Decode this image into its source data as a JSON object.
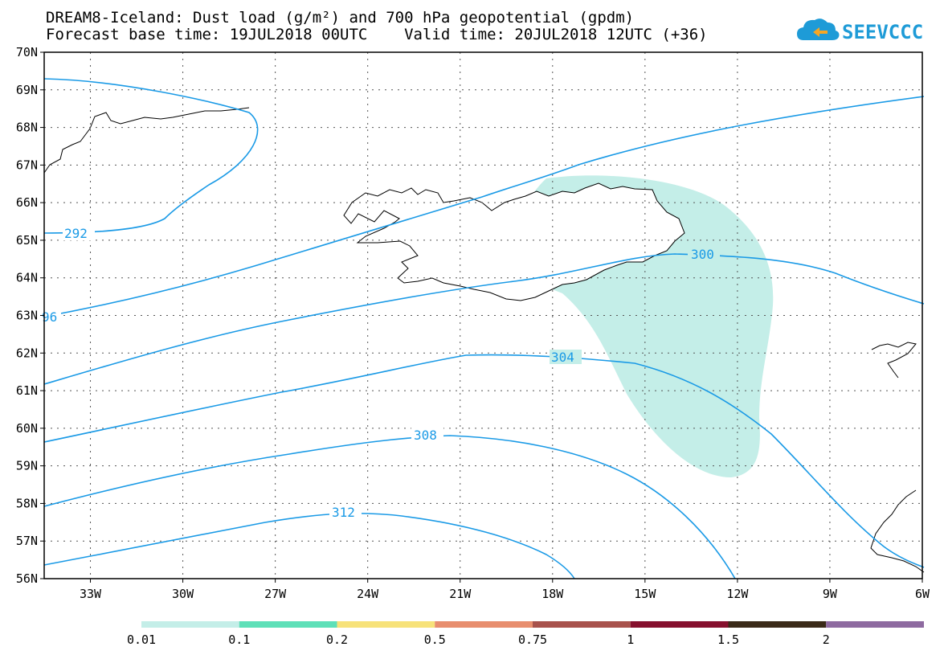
{
  "header": {
    "title_line1": "DREAM8-Iceland: Dust load (g/m²) and 700 hPa geopotential (gpdm)",
    "title_line2": "Forecast base time: 19JUL2018 00UTC    Valid time: 20JUL2018 12UTC (+36)",
    "logo_text": "SEEVCCC"
  },
  "map": {
    "lat_labels": [
      "70N",
      "69N",
      "68N",
      "67N",
      "66N",
      "65N",
      "64N",
      "63N",
      "62N",
      "61N",
      "60N",
      "59N",
      "58N",
      "57N",
      "56N"
    ],
    "lon_labels": [
      "33W",
      "30W",
      "27W",
      "24W",
      "21W",
      "18W",
      "15W",
      "12W",
      "9W",
      "6W"
    ],
    "lon_range": [
      -34.5,
      -6
    ],
    "lat_range": [
      56,
      70
    ],
    "contour_labels": [
      "292",
      "96",
      "300",
      "304",
      "308",
      "312"
    ],
    "contour_color": "#1a9ae6",
    "dust_colors": {
      "light": "#c4eee8",
      "medium": "#5ee0b8"
    }
  },
  "legend": {
    "labels": [
      "0.01",
      "0.1",
      "0.2",
      "0.5",
      "0.75",
      "1",
      "1.5",
      "2"
    ],
    "colors": [
      "#c4eee8",
      "#5ee0b8",
      "#f7e27a",
      "#e88e6e",
      "#a8524c",
      "#86102e",
      "#3a2a18",
      "#8e6aa0"
    ]
  }
}
